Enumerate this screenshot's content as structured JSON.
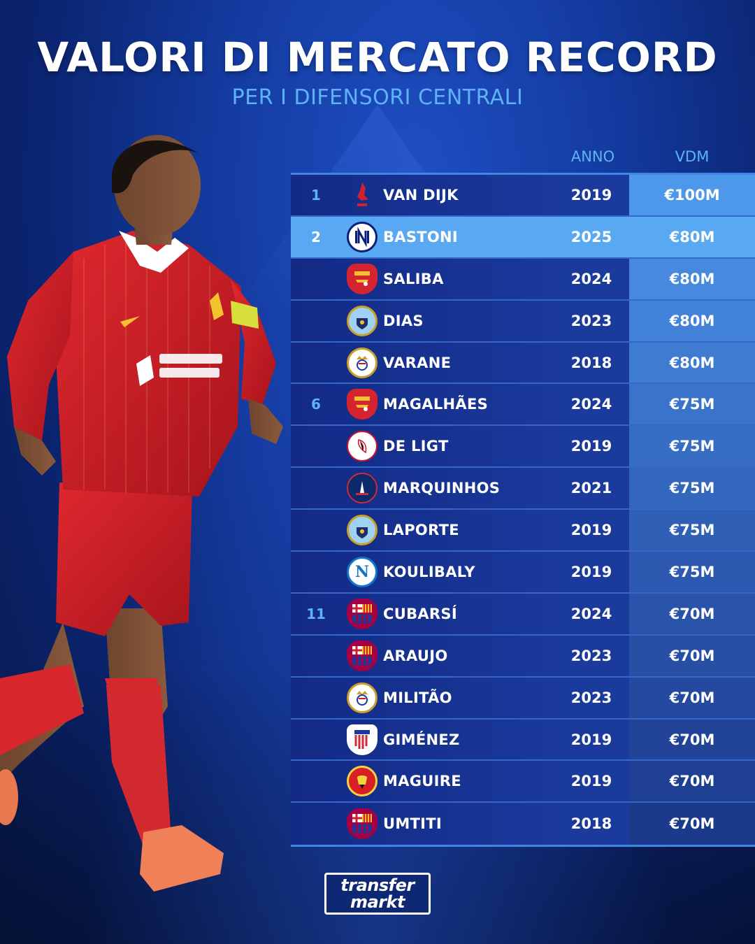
{
  "title": "VALORI DI MERCATO RECORD",
  "subtitle": "PER I DIFENSORI CENTRALI",
  "colors": {
    "accent": "#5db3f5",
    "highlight_row": "#58a8f2",
    "row_bg": "#1a3a9c",
    "vdm_bg": [
      "#4e98ec",
      "#4a92e6",
      "#4689df",
      "#4282d8",
      "#3e7bd1",
      "#3a74ca",
      "#376ec4",
      "#3367bd",
      "#3060b6",
      "#2d5ab0",
      "#2a54aa",
      "#274fa4",
      "#24499e",
      "#214498",
      "#1f3f92",
      "#1c3a8c"
    ]
  },
  "chart_data": {
    "type": "table",
    "columns": [
      "",
      "",
      "",
      "ANNO",
      "VDM"
    ],
    "rows": [
      {
        "rank": "1",
        "club": "Liverpool",
        "player": "VAN DIJK",
        "year": "2019",
        "value": "€100M",
        "value_num": 100
      },
      {
        "rank": "2",
        "club": "Inter",
        "player": "BASTONI",
        "year": "2025",
        "value": "€80M",
        "value_num": 80,
        "highlight": true
      },
      {
        "rank": "",
        "club": "Arsenal",
        "player": "SALIBA",
        "year": "2024",
        "value": "€80M",
        "value_num": 80
      },
      {
        "rank": "",
        "club": "Manchester City",
        "player": "DIAS",
        "year": "2023",
        "value": "€80M",
        "value_num": 80
      },
      {
        "rank": "",
        "club": "Real Madrid",
        "player": "VARANE",
        "year": "2018",
        "value": "€80M",
        "value_num": 80
      },
      {
        "rank": "6",
        "club": "Arsenal",
        "player": "MAGALHÃES",
        "year": "2024",
        "value": "€75M",
        "value_num": 75
      },
      {
        "rank": "",
        "club": "Ajax",
        "player": "DE LIGT",
        "year": "2019",
        "value": "€75M",
        "value_num": 75
      },
      {
        "rank": "",
        "club": "PSG",
        "player": "MARQUINHOS",
        "year": "2021",
        "value": "€75M",
        "value_num": 75
      },
      {
        "rank": "",
        "club": "Manchester City",
        "player": "LAPORTE",
        "year": "2019",
        "value": "€75M",
        "value_num": 75
      },
      {
        "rank": "",
        "club": "Napoli",
        "player": "KOULIBALY",
        "year": "2019",
        "value": "€75M",
        "value_num": 75
      },
      {
        "rank": "11",
        "club": "Barcelona",
        "player": "CUBARSÍ",
        "year": "2024",
        "value": "€70M",
        "value_num": 70
      },
      {
        "rank": "",
        "club": "Barcelona",
        "player": "ARAUJO",
        "year": "2023",
        "value": "€70M",
        "value_num": 70
      },
      {
        "rank": "",
        "club": "Real Madrid",
        "player": "MILITÃO",
        "year": "2023",
        "value": "€70M",
        "value_num": 70
      },
      {
        "rank": "",
        "club": "Atlético Madrid",
        "player": "GIMÉNEZ",
        "year": "2019",
        "value": "€70M",
        "value_num": 70
      },
      {
        "rank": "",
        "club": "Manchester United",
        "player": "MAGUIRE",
        "year": "2019",
        "value": "€70M",
        "value_num": 70
      },
      {
        "rank": "",
        "club": "Barcelona",
        "player": "UMTITI",
        "year": "2018",
        "value": "€70M",
        "value_num": 70
      }
    ]
  },
  "crests": {
    "Liverpool": {
      "icon": "liverpool-crest-icon",
      "text": "",
      "bg": "transparent",
      "fg": "#d0222e"
    },
    "Inter": {
      "icon": "inter-crest-icon",
      "text": "",
      "bg": "#ffffff",
      "fg": "#0a1f7a"
    },
    "Arsenal": {
      "icon": "arsenal-crest-icon",
      "text": "",
      "bg": "#d5232f",
      "fg": "#ffffff"
    },
    "Manchester City": {
      "icon": "manchester-city-crest-icon",
      "text": "",
      "bg": "#9fd1f2",
      "fg": "#1b2f6b"
    },
    "Real Madrid": {
      "icon": "real-madrid-crest-icon",
      "text": "",
      "bg": "#ffffff",
      "fg": "#c9a02a"
    },
    "Ajax": {
      "icon": "ajax-crest-icon",
      "text": "",
      "bg": "#ffffff",
      "fg": "#c9162b"
    },
    "PSG": {
      "icon": "psg-crest-icon",
      "text": "",
      "bg": "#0c2a6b",
      "fg": "#ffffff"
    },
    "Napoli": {
      "icon": "napoli-crest-icon",
      "text": "N",
      "bg": "#ffffff",
      "fg": "#1474c7"
    },
    "Barcelona": {
      "icon": "barcelona-crest-icon",
      "text": "",
      "bg": "#a50044",
      "fg": "#f2c12e"
    },
    "Atlético Madrid": {
      "icon": "atletico-crest-icon",
      "text": "",
      "bg": "#ffffff",
      "fg": "#ce2b37"
    },
    "Manchester United": {
      "icon": "manchester-united-crest-icon",
      "text": "",
      "bg": "#d81f26",
      "fg": "#f5d33b"
    }
  },
  "brand": {
    "line1": "transfer",
    "line2": "markt"
  }
}
